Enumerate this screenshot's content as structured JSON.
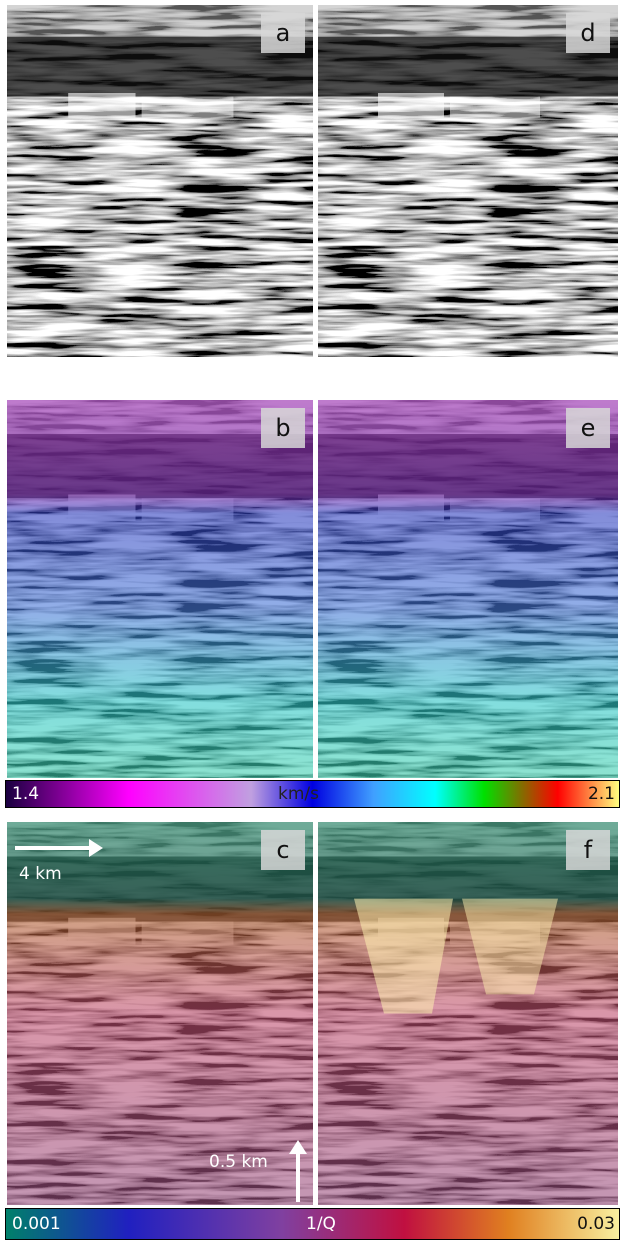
{
  "panels": [
    {
      "label": "a"
    },
    {
      "label": "d"
    },
    {
      "label": "b"
    },
    {
      "label": "e"
    },
    {
      "label": "c"
    },
    {
      "label": "f"
    }
  ],
  "colorbars": [
    {
      "min_label": "1.4",
      "unit": "km/s",
      "max_label": "2.1"
    },
    {
      "min_label": "0.001",
      "unit": "1/Q",
      "max_label": "0.03"
    }
  ],
  "scale": {
    "horizontal": "4 km",
    "vertical": "0.5 km"
  }
}
